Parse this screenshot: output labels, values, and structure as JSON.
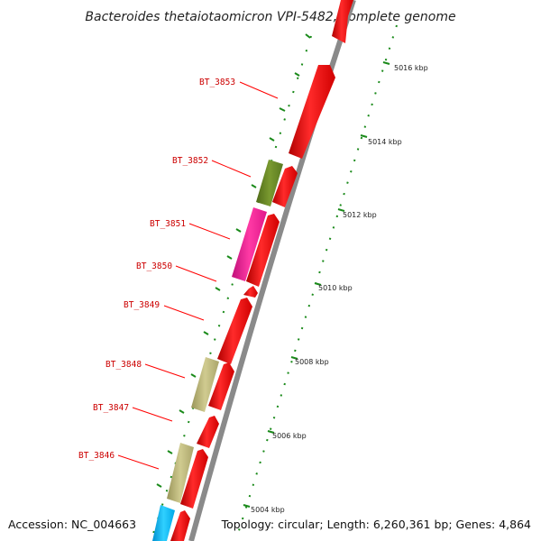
{
  "title": "Bacteroides thetaiotaomicron VPI-5482, complete genome",
  "accession_text": "Accession: NC_004663",
  "summary_text": "Topology: circular; Length: 6,260,361 bp; Genes: 4,864",
  "scale_labels": [
    "5004 kbp",
    "5006 kbp",
    "5008 kbp",
    "5010 kbp",
    "5012 kbp",
    "5014 kbp",
    "5016 kbp"
  ],
  "gene_labels": [
    "BT_3853",
    "BT_3852",
    "BT_3851",
    "BT_3850",
    "BT_3849",
    "BT_3848",
    "BT_3847",
    "BT_3846"
  ],
  "colors": {
    "backbone": "#8a8a8a",
    "gene_red": "#ff0000",
    "gene_olive": "#6b8e23",
    "gene_magenta": "#ff1493",
    "gene_khaki": "#bdb76b",
    "gene_cyan": "#00bfff",
    "tick_green": "#1a8a1a",
    "label_red": "#cc0000"
  }
}
